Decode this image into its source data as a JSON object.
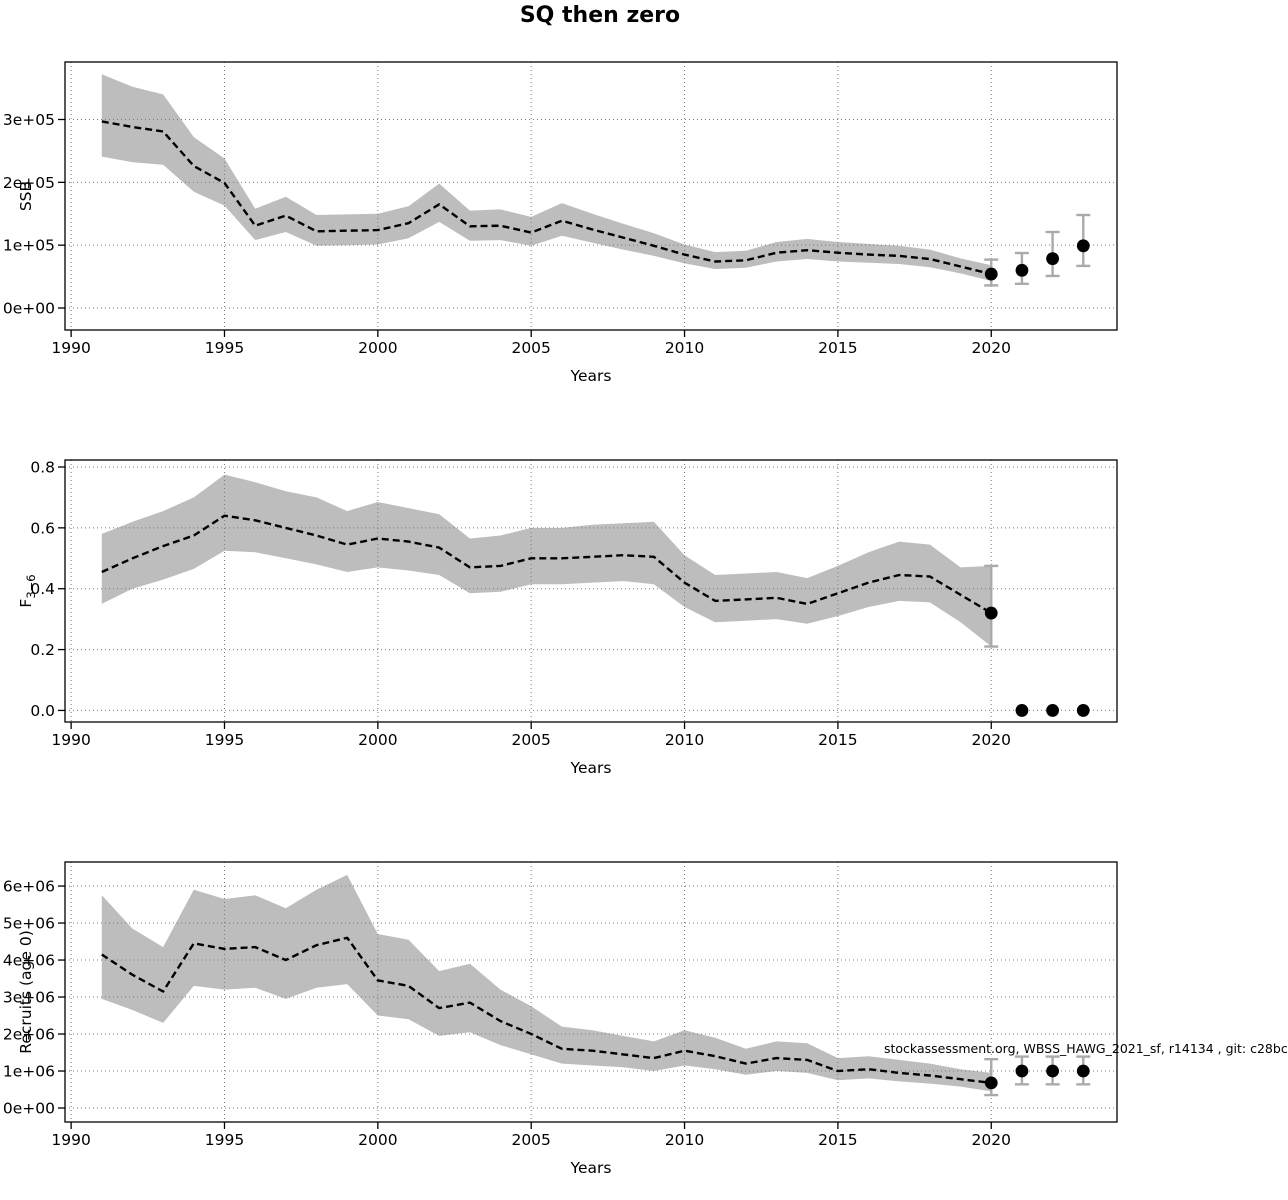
{
  "title": "SQ then zero",
  "annotation": "stockassessment.org, WBSS_HAWG_2021_sf, r14134 , git: c28bc",
  "colors": {
    "band": "#bdbdbd",
    "line": "#000000",
    "point": "#000000",
    "error_bar": "#aaaaaa",
    "grid": "#7a7a7a",
    "axis": "#000000"
  },
  "chart_data": [
    {
      "type": "line",
      "name": "ssb",
      "title": "",
      "xlabel": "Years",
      "ylabel": "SSB",
      "ylabel_sub": null,
      "x": [
        1991,
        1992,
        1993,
        1994,
        1995,
        1996,
        1997,
        1998,
        1999,
        2000,
        2001,
        2002,
        2003,
        2004,
        2005,
        2006,
        2007,
        2008,
        2009,
        2010,
        2011,
        2012,
        2013,
        2014,
        2015,
        2016,
        2017,
        2018,
        2019,
        2020
      ],
      "series": [
        {
          "name": "SSB estimate",
          "values": [
            297000,
            288000,
            281000,
            226000,
            199000,
            131000,
            147000,
            122000,
            123000,
            124000,
            135000,
            165000,
            130000,
            131000,
            120000,
            139000,
            125000,
            112000,
            99000,
            85000,
            74000,
            76000,
            88000,
            92000,
            88000,
            85000,
            83000,
            78000,
            66000,
            54000
          ]
        }
      ],
      "band": {
        "lower": [
          241000,
          232000,
          228000,
          185000,
          163000,
          108000,
          121000,
          99000,
          100000,
          101000,
          111000,
          137000,
          107000,
          108000,
          99000,
          115000,
          104000,
          93000,
          83000,
          71000,
          62000,
          64000,
          74000,
          78000,
          74000,
          72000,
          70000,
          65000,
          55000,
          43000
        ],
        "upper": [
          372000,
          352000,
          340000,
          272000,
          238000,
          158000,
          177000,
          148000,
          149000,
          150000,
          162000,
          198000,
          155000,
          157000,
          145000,
          167000,
          150000,
          134000,
          119000,
          101000,
          89000,
          91000,
          105000,
          110000,
          105000,
          102000,
          99000,
          93000,
          79000,
          68000
        ]
      },
      "forecast_points": {
        "x": [
          2020,
          2021,
          2022,
          2023
        ],
        "y": [
          54000,
          60000,
          78500,
          99000
        ],
        "lo": [
          36000,
          38500,
          51000,
          67000
        ],
        "hi": [
          77000,
          87500,
          121000,
          148000
        ]
      },
      "xlim": [
        1989.8,
        2024.1
      ],
      "ylim": [
        -35000,
        391500
      ],
      "xticks": {
        "values": [
          1990,
          1995,
          2000,
          2005,
          2010,
          2015,
          2020
        ],
        "labels": [
          "1990",
          "1995",
          "2000",
          "2005",
          "2010",
          "2015",
          "2020"
        ]
      },
      "yticks": {
        "values": [
          0,
          100000,
          200000,
          300000
        ],
        "labels": [
          "0e+00",
          "1e+05",
          "2e+05",
          "3e+05"
        ]
      },
      "grid": true,
      "legend": null
    },
    {
      "type": "line",
      "name": "f",
      "title": "",
      "xlabel": "Years",
      "ylabel": "F",
      "ylabel_sub": "3−6",
      "x": [
        1991,
        1992,
        1993,
        1994,
        1995,
        1996,
        1997,
        1998,
        1999,
        2000,
        2001,
        2002,
        2003,
        2004,
        2005,
        2006,
        2007,
        2008,
        2009,
        2010,
        2011,
        2012,
        2013,
        2014,
        2015,
        2016,
        2017,
        2018,
        2019,
        2020
      ],
      "series": [
        {
          "name": "F estimate",
          "values": [
            0.455,
            0.5,
            0.54,
            0.575,
            0.64,
            0.625,
            0.6,
            0.575,
            0.545,
            0.565,
            0.555,
            0.535,
            0.47,
            0.475,
            0.5,
            0.5,
            0.505,
            0.51,
            0.505,
            0.42,
            0.36,
            0.365,
            0.37,
            0.35,
            0.385,
            0.42,
            0.445,
            0.44,
            0.38,
            0.32
          ]
        }
      ],
      "band": {
        "lower": [
          0.35,
          0.4,
          0.43,
          0.465,
          0.525,
          0.52,
          0.5,
          0.48,
          0.455,
          0.47,
          0.46,
          0.445,
          0.385,
          0.39,
          0.415,
          0.415,
          0.42,
          0.425,
          0.415,
          0.34,
          0.29,
          0.295,
          0.3,
          0.285,
          0.31,
          0.34,
          0.36,
          0.355,
          0.29,
          0.21
        ],
        "upper": [
          0.58,
          0.62,
          0.655,
          0.7,
          0.775,
          0.75,
          0.72,
          0.7,
          0.655,
          0.685,
          0.665,
          0.645,
          0.565,
          0.575,
          0.6,
          0.6,
          0.61,
          0.615,
          0.62,
          0.51,
          0.445,
          0.45,
          0.455,
          0.435,
          0.475,
          0.52,
          0.555,
          0.545,
          0.47,
          0.475
        ]
      },
      "forecast_points": {
        "x": [
          2020,
          2021,
          2022,
          2023
        ],
        "y": [
          0.32,
          0,
          0,
          0
        ],
        "lo": [
          0.21,
          null,
          null,
          null
        ],
        "hi": [
          0.475,
          null,
          null,
          null
        ]
      },
      "xlim": [
        1989.8,
        2024.1
      ],
      "ylim": [
        -0.038,
        0.823
      ],
      "xticks": {
        "values": [
          1990,
          1995,
          2000,
          2005,
          2010,
          2015,
          2020
        ],
        "labels": [
          "1990",
          "1995",
          "2000",
          "2005",
          "2010",
          "2015",
          "2020"
        ]
      },
      "yticks": {
        "values": [
          0.0,
          0.2,
          0.4,
          0.6,
          0.8
        ],
        "labels": [
          "0.0",
          "0.2",
          "0.4",
          "0.6",
          "0.8"
        ]
      },
      "grid": true,
      "legend": null
    },
    {
      "type": "line",
      "name": "recruits",
      "title": "",
      "xlabel": "Years",
      "ylabel": "Recruits (age 0)",
      "ylabel_sub": null,
      "x": [
        1991,
        1992,
        1993,
        1994,
        1995,
        1996,
        1997,
        1998,
        1999,
        2000,
        2001,
        2002,
        2003,
        2004,
        2005,
        2006,
        2007,
        2008,
        2009,
        2010,
        2011,
        2012,
        2013,
        2014,
        2015,
        2016,
        2017,
        2018,
        2019,
        2020
      ],
      "series": [
        {
          "name": "Recruitment estimate",
          "values": [
            4150000,
            3600000,
            3150000,
            4450000,
            4300000,
            4350000,
            4000000,
            4400000,
            4600000,
            3450000,
            3300000,
            2700000,
            2850000,
            2350000,
            2000000,
            1600000,
            1550000,
            1450000,
            1350000,
            1550000,
            1400000,
            1200000,
            1350000,
            1300000,
            1000000,
            1050000,
            950000,
            880000,
            780000,
            680000
          ]
        }
      ],
      "band": {
        "lower": [
          2950000,
          2650000,
          2300000,
          3300000,
          3200000,
          3250000,
          2950000,
          3250000,
          3350000,
          2500000,
          2400000,
          1950000,
          2050000,
          1700000,
          1450000,
          1200000,
          1150000,
          1100000,
          1000000,
          1150000,
          1050000,
          900000,
          1000000,
          950000,
          750000,
          800000,
          720000,
          660000,
          580000,
          450000
        ],
        "upper": [
          5750000,
          4850000,
          4350000,
          5900000,
          5650000,
          5750000,
          5400000,
          5900000,
          6300000,
          4700000,
          4550000,
          3700000,
          3900000,
          3200000,
          2750000,
          2200000,
          2100000,
          1950000,
          1800000,
          2100000,
          1900000,
          1600000,
          1800000,
          1750000,
          1350000,
          1400000,
          1300000,
          1200000,
          1050000,
          950000
        ]
      },
      "forecast_points": {
        "x": [
          2020,
          2021,
          2022,
          2023
        ],
        "y": [
          680000,
          1000000,
          1000000,
          1000000
        ],
        "lo": [
          350000,
          640000,
          640000,
          640000
        ],
        "hi": [
          1320000,
          1390000,
          1390000,
          1390000
        ]
      },
      "xlim": [
        1989.8,
        2024.1
      ],
      "ylim": [
        -378000,
        6650000
      ],
      "xticks": {
        "values": [
          1990,
          1995,
          2000,
          2005,
          2010,
          2015,
          2020
        ],
        "labels": [
          "1990",
          "1995",
          "2000",
          "2005",
          "2010",
          "2015",
          "2020"
        ]
      },
      "yticks": {
        "values": [
          0,
          1000000,
          2000000,
          3000000,
          4000000,
          5000000,
          6000000
        ],
        "labels": [
          "0e+00",
          "1e+06",
          "2e+06",
          "3e+06",
          "4e+06",
          "5e+06",
          "6e+06"
        ]
      },
      "grid": true,
      "legend": null
    }
  ]
}
